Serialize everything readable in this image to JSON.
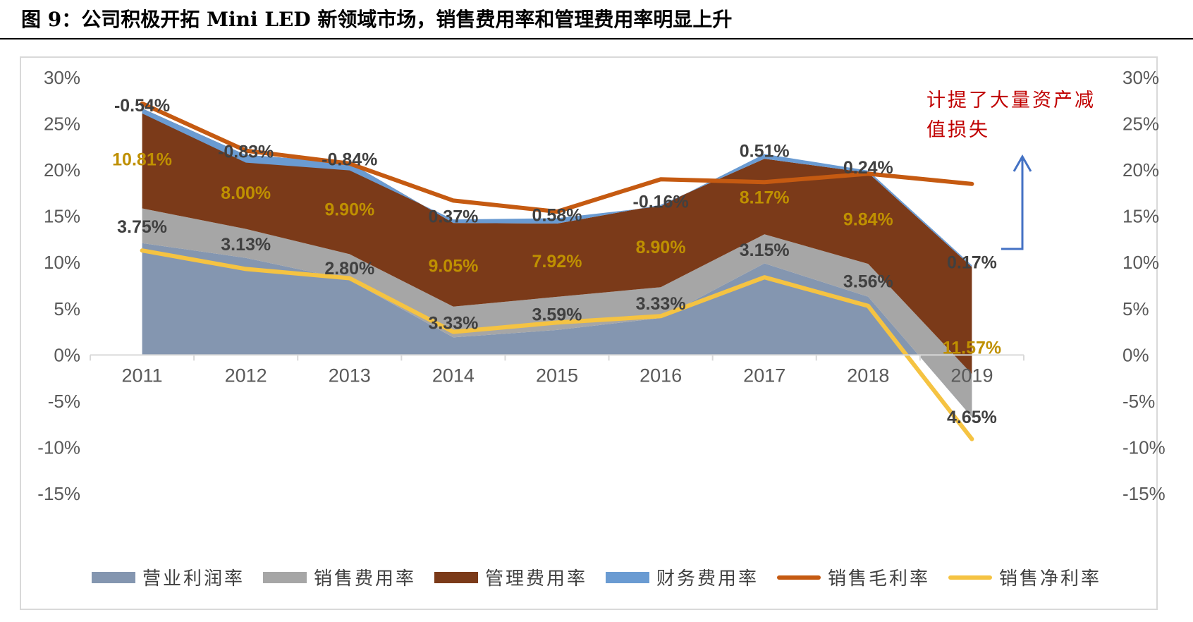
{
  "title": "图 9：公司积极开拓 Mini LED 新领域市场，销售费用率和管理费用率明显上升",
  "annotation": "计提了大量资产减值损失",
  "colors": {
    "operating_margin": "#8496b0",
    "selling_expense": "#a6a6a6",
    "admin_expense": "#7b3a19",
    "finance_expense": "#6a9bd2",
    "gross_margin": "#c55a11",
    "net_margin": "#f5c342",
    "label_dark": "#404040",
    "label_gold": "#bf9000",
    "arrow": "#4472c4"
  },
  "chart_data": {
    "type": "area",
    "categories": [
      "2011",
      "2012",
      "2013",
      "2014",
      "2015",
      "2016",
      "2017",
      "2018",
      "2019"
    ],
    "ylim": [
      -0.15,
      0.3
    ],
    "yticks": [
      "30%",
      "25%",
      "20%",
      "15%",
      "10%",
      "5%",
      "0%",
      "-5%",
      "-10%",
      "-15%"
    ],
    "grid": false,
    "legend_position": "bottom",
    "stacked_series": [
      {
        "key": "operating_margin",
        "name": "营业利润率",
        "values": [
          0.121,
          0.105,
          0.081,
          0.019,
          0.027,
          0.04,
          0.099,
          0.063,
          -0.067
        ]
      },
      {
        "key": "selling_expense",
        "name": "销售费用率",
        "values": [
          0.0375,
          0.0313,
          0.028,
          0.0333,
          0.0359,
          0.0333,
          0.0315,
          0.0356,
          0.0465
        ]
      },
      {
        "key": "admin_expense",
        "name": "管理费用率",
        "values": [
          0.1081,
          0.08,
          0.099,
          0.0905,
          0.0792,
          0.089,
          0.0817,
          0.0984,
          0.1157
        ]
      },
      {
        "key": "finance_expense",
        "name": "财务费用率",
        "values": [
          -0.0054,
          -0.0083,
          -0.0084,
          0.0037,
          0.0058,
          -0.0016,
          0.0051,
          0.0024,
          0.0017
        ]
      }
    ],
    "line_series": [
      {
        "key": "gross_margin",
        "name": "销售毛利率",
        "values": [
          0.272,
          0.221,
          0.207,
          0.167,
          0.155,
          0.19,
          0.187,
          0.196,
          0.185
        ]
      },
      {
        "key": "net_margin",
        "name": "销售净利率",
        "values": [
          0.113,
          0.093,
          0.083,
          0.025,
          0.035,
          0.042,
          0.084,
          0.053,
          -0.091
        ]
      }
    ],
    "data_labels": {
      "selling_expense": [
        "3.75%",
        "3.13%",
        "2.80%",
        "3.33%",
        "3.59%",
        "3.33%",
        "3.15%",
        "3.56%",
        "4.65%"
      ],
      "admin_expense": [
        "10.81%",
        "8.00%",
        "9.90%",
        "9.05%",
        "7.92%",
        "8.90%",
        "8.17%",
        "9.84%",
        "11.57%"
      ],
      "finance_expense": [
        "-0.54%",
        "-0.83%",
        "-0.84%",
        "0.37%",
        "0.58%",
        "-0.16%",
        "0.51%",
        "0.24%",
        "0.17%"
      ]
    }
  }
}
